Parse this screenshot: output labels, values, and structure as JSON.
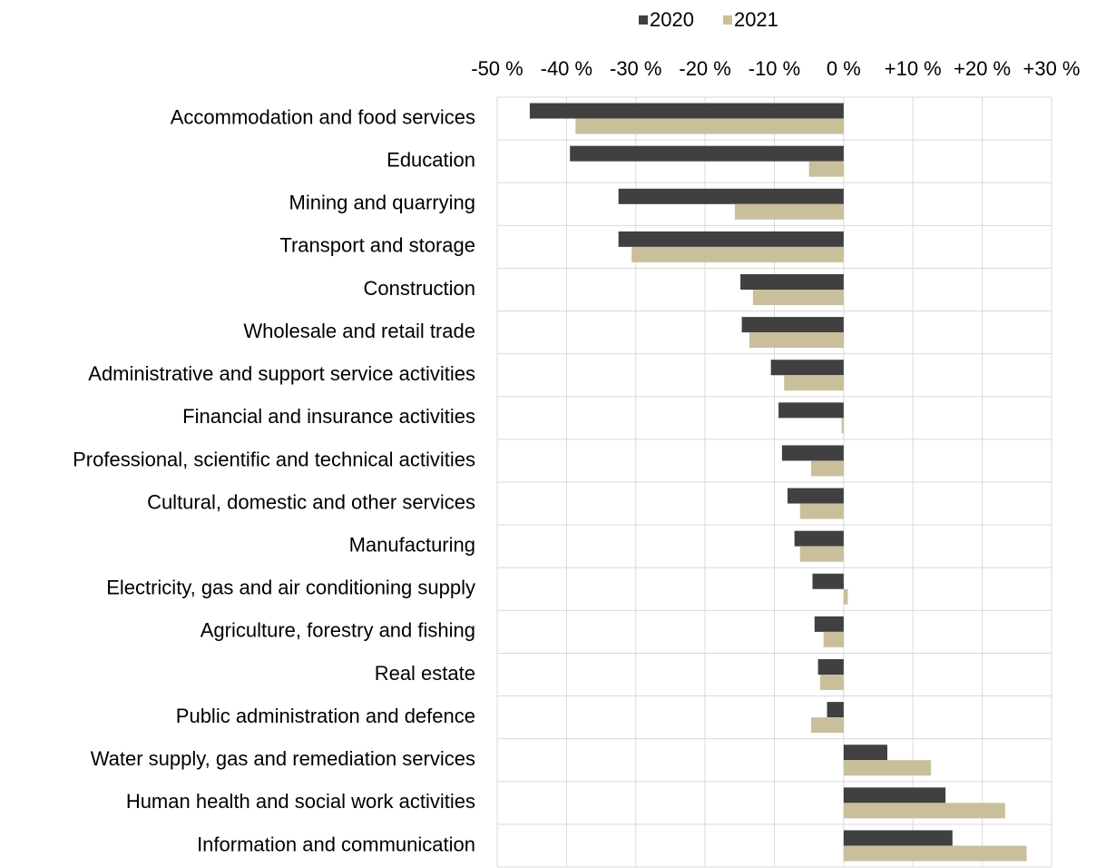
{
  "chart_data": {
    "type": "barh",
    "categories": [
      "Accommodation and food services",
      "Education",
      "Mining and quarrying",
      "Transport and storage",
      "Construction",
      "Wholesale and retail trade",
      "Administrative and support service activities",
      "Financial and insurance activities",
      "Professional, scientific and technical activities",
      "Cultural, domestic and other services",
      "Manufacturing",
      "Electricity, gas and air conditioning supply",
      "Agriculture, forestry and fishing",
      "Real estate",
      "Public administration and defence",
      "Water supply, gas and remediation services",
      "Human health and social work activities",
      "Information and communication"
    ],
    "series": [
      {
        "name": "2020",
        "color": "#404040",
        "values": [
          -45.3,
          -39.5,
          -32.5,
          -32.5,
          -14.9,
          -14.7,
          -10.5,
          -9.4,
          -8.9,
          -8.1,
          -7.1,
          -4.5,
          -4.2,
          -3.7,
          -2.4,
          6.3,
          14.7,
          15.7
        ]
      },
      {
        "name": "2021",
        "color": "#c9bf9b",
        "values": [
          -38.7,
          -5.0,
          -15.7,
          -30.6,
          -13.1,
          -13.6,
          -8.6,
          -0.3,
          -4.7,
          -6.3,
          -6.3,
          0.6,
          -2.9,
          -3.4,
          -4.7,
          12.6,
          23.3,
          26.4
        ]
      }
    ],
    "xlim": [
      -50,
      30
    ],
    "xticks": [
      {
        "value": -50,
        "label": "-50 %"
      },
      {
        "value": -40,
        "label": "-40 %"
      },
      {
        "value": -30,
        "label": "-30 %"
      },
      {
        "value": -20,
        "label": "-20 %"
      },
      {
        "value": -10,
        "label": "-10 %"
      },
      {
        "value": 0,
        "label": "0 %"
      },
      {
        "value": 10,
        "label": "+10 %"
      },
      {
        "value": 20,
        "label": "+20 %"
      },
      {
        "value": 30,
        "label": "+30 %"
      }
    ],
    "grid": true,
    "legend": "top"
  }
}
